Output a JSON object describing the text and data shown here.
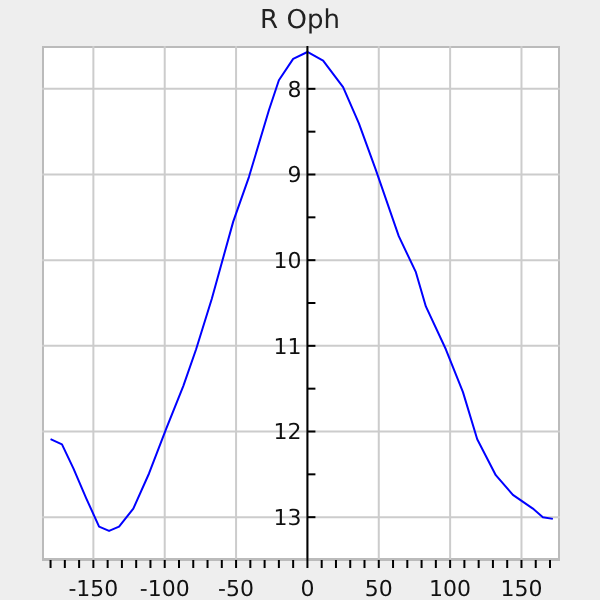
{
  "chart_data": {
    "type": "line",
    "title": "R Oph",
    "x": [
      -180,
      -172,
      -164,
      -155,
      -146,
      -139,
      -132,
      -122,
      -111,
      -99,
      -87,
      -78,
      -67,
      -52,
      -41,
      -27,
      -20,
      -10,
      0,
      11,
      25,
      36,
      48,
      64,
      76,
      83,
      97,
      109,
      119,
      132,
      144,
      158,
      165,
      172
    ],
    "series": [
      {
        "color": "#0000ff",
        "values": [
          12.09,
          12.15,
          12.43,
          12.78,
          13.11,
          13.16,
          13.11,
          12.9,
          12.49,
          11.97,
          11.47,
          11.04,
          10.45,
          9.55,
          9.03,
          8.25,
          7.9,
          7.65,
          7.57,
          7.67,
          7.98,
          8.4,
          8.95,
          9.72,
          10.14,
          10.54,
          11.04,
          11.54,
          12.09,
          12.51,
          12.74,
          12.9,
          13.0,
          13.02
        ]
      }
    ],
    "xlim": [
      -186,
      177
    ],
    "ylim": [
      13.5,
      7.5
    ],
    "xticks": [
      {
        "value": -180,
        "label": null
      },
      {
        "value": -170,
        "label": null
      },
      {
        "value": -160,
        "label": null
      },
      -150,
      {
        "value": -140,
        "label": null
      },
      {
        "value": -130,
        "label": null
      },
      {
        "value": -120,
        "label": null
      },
      {
        "value": -110,
        "label": null
      },
      -100,
      {
        "value": -90,
        "label": null
      },
      {
        "value": -80,
        "label": null
      },
      {
        "value": -70,
        "label": null
      },
      {
        "value": -60,
        "label": null
      },
      -50,
      {
        "value": -40,
        "label": null
      },
      {
        "value": -30,
        "label": null
      },
      {
        "value": -20,
        "label": null
      },
      {
        "value": -10,
        "label": null
      },
      0,
      {
        "value": 10,
        "label": null
      },
      {
        "value": 20,
        "label": null
      },
      {
        "value": 30,
        "label": null
      },
      {
        "value": 40,
        "label": null
      },
      50,
      {
        "value": 60,
        "label": null
      },
      {
        "value": 70,
        "label": null
      },
      {
        "value": 80,
        "label": null
      },
      {
        "value": 90,
        "label": null
      },
      100,
      {
        "value": 110,
        "label": null
      },
      {
        "value": 120,
        "label": null
      },
      {
        "value": 130,
        "label": null
      },
      {
        "value": 140,
        "label": null
      },
      150,
      {
        "value": 160,
        "label": null
      },
      {
        "value": 170,
        "label": null
      }
    ],
    "yticks": [
      8,
      {
        "value": 8.5,
        "label": null
      },
      9,
      {
        "value": 9.5,
        "label": null
      },
      10,
      {
        "value": 10.5,
        "label": null
      },
      11,
      {
        "value": 11.5,
        "label": null
      },
      12,
      {
        "value": 12.5,
        "label": null
      },
      13
    ],
    "grid": true,
    "marker": "none",
    "line_style": "solid"
  }
}
